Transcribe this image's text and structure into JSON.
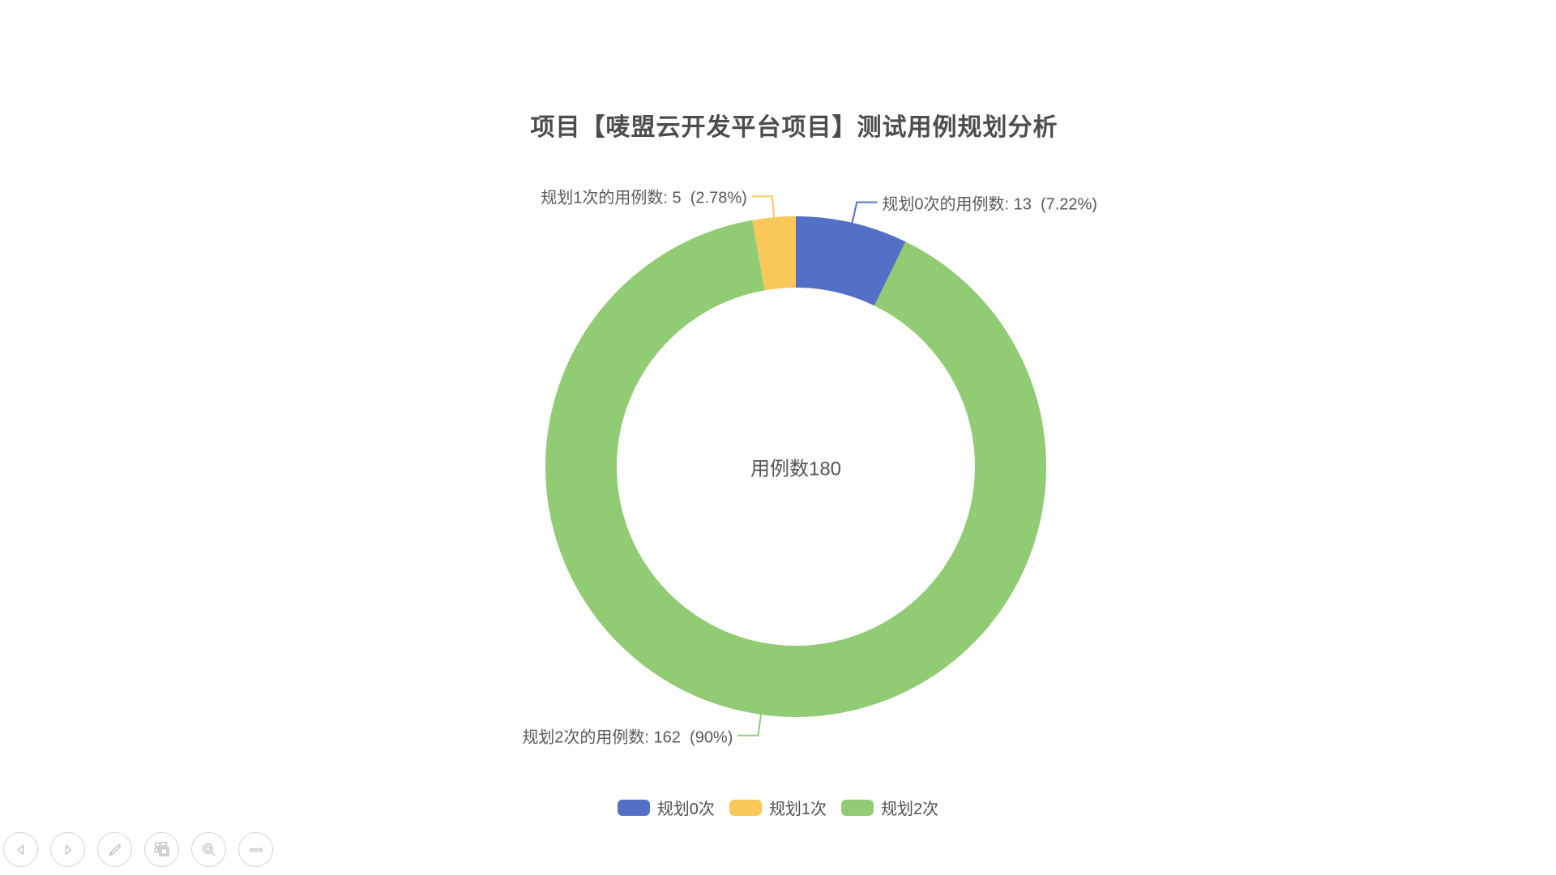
{
  "page": {
    "background": "#ffffff"
  },
  "chart_data": {
    "type": "pie",
    "title": "项目【唛盟云开发平台项目】测试用例规划分析",
    "center_label": "用例数180",
    "total": 180,
    "series": [
      {
        "name": "规划0次",
        "value": 13,
        "percent": "7.22%",
        "color": "#5470c6",
        "callout": "规划0次的用例数: 13  (7.22%)"
      },
      {
        "name": "规划1次",
        "value": 5,
        "percent": "2.78%",
        "color": "#fac858",
        "callout": "规划1次的用例数: 5  (2.78%)"
      },
      {
        "name": "规划2次",
        "value": 162,
        "percent": "90%",
        "color": "#91cc75",
        "callout": "规划2次的用例数: 162  (90%)"
      }
    ],
    "legend_position": "bottom",
    "donut": {
      "inner_radius_ratio": 0.715
    }
  },
  "toolbar": {
    "buttons": [
      {
        "icon": "nav-back-icon"
      },
      {
        "icon": "nav-forward-icon"
      },
      {
        "icon": "edit-pencil-icon"
      },
      {
        "icon": "layout-squares-icon"
      },
      {
        "icon": "zoom-magnifier-icon"
      },
      {
        "icon": "more-ellipsis-icon"
      }
    ]
  }
}
